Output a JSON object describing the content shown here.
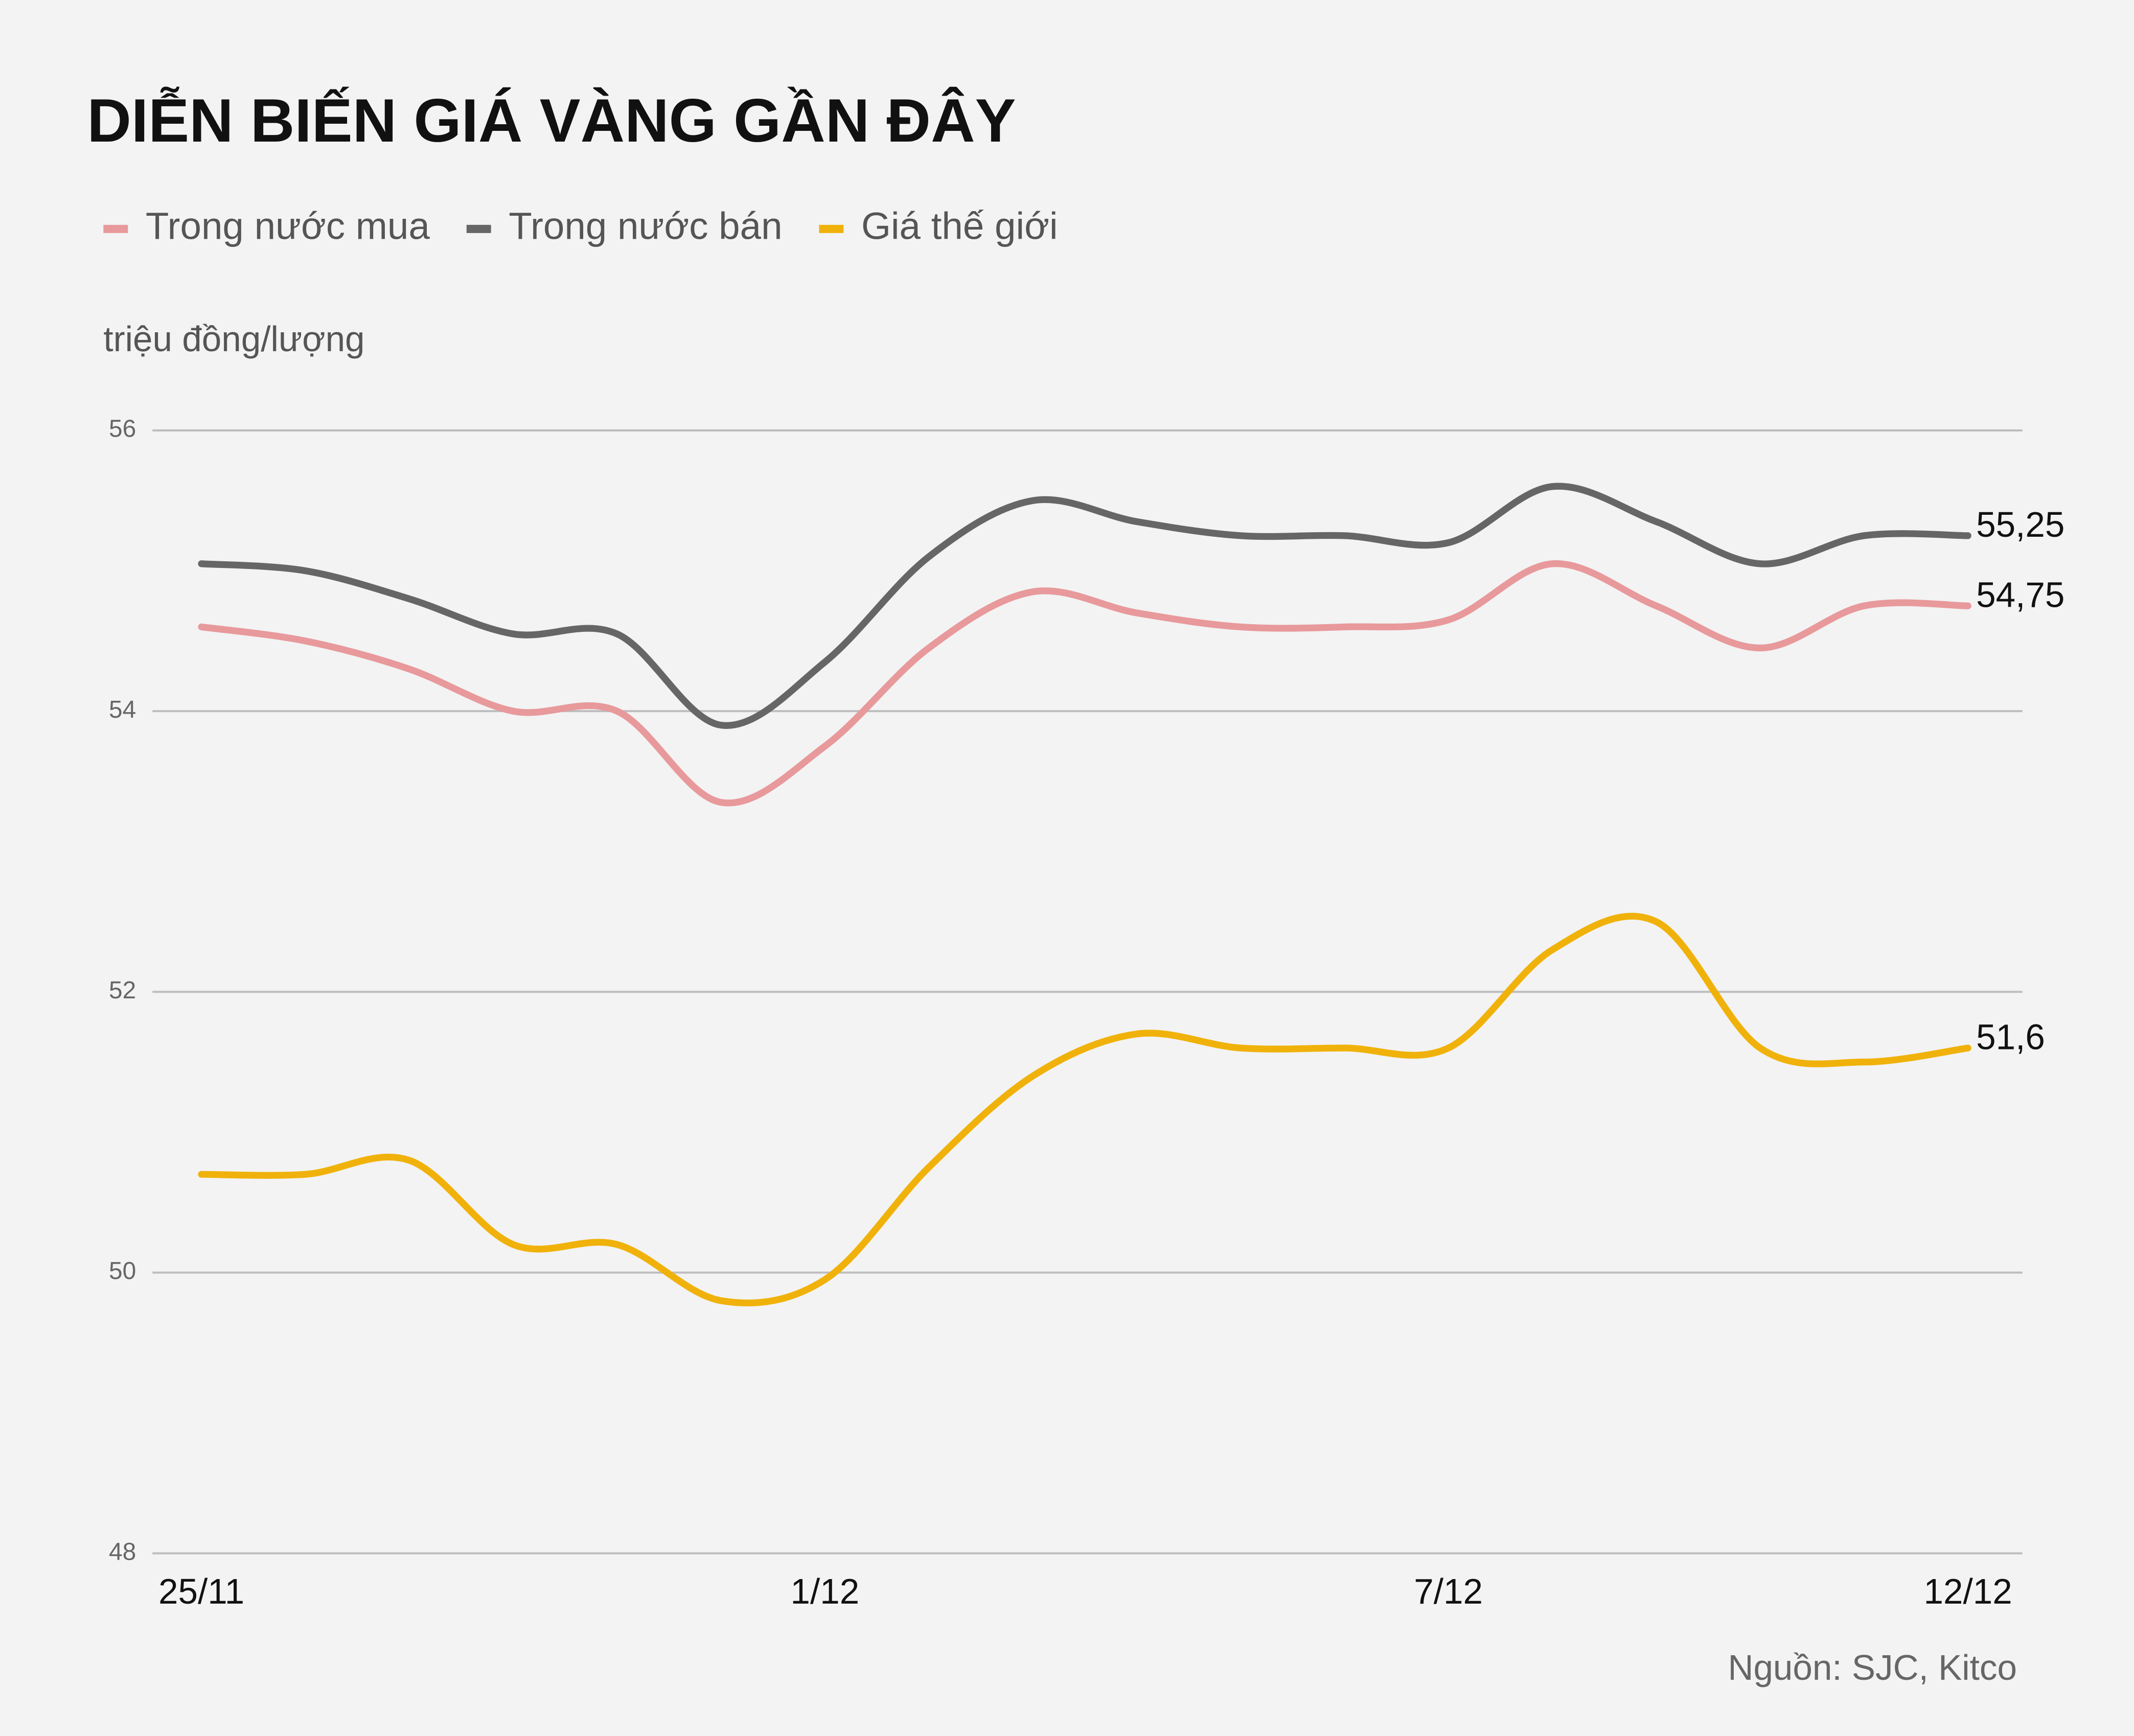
{
  "chart_data": {
    "type": "line",
    "title": "DIỄN BIẾN GIÁ VÀNG GẦN ĐÂY",
    "y_label": "triệu đồng/lượng",
    "source": "Nguồn: SJC, Kitco",
    "categories": [
      "25/11",
      null,
      null,
      null,
      null,
      null,
      "1/12",
      null,
      null,
      null,
      null,
      null,
      "7/12",
      null,
      null,
      null,
      null,
      "12/12"
    ],
    "series": [
      {
        "name": "Trong nước mua",
        "color": "#e8999b",
        "values": [
          54.6,
          54.5,
          54.3,
          54.0,
          54.0,
          53.35,
          53.75,
          54.45,
          54.85,
          54.7,
          54.6,
          54.6,
          54.65,
          55.05,
          54.75,
          54.45,
          54.75,
          54.75
        ],
        "value_labels": [
          null,
          null,
          null,
          null,
          null,
          null,
          null,
          null,
          null,
          null,
          null,
          null,
          null,
          null,
          null,
          null,
          null,
          "54,75"
        ]
      },
      {
        "name": "Trong nước bán",
        "color": "#666666",
        "values": [
          55.05,
          55.0,
          54.8,
          54.55,
          54.55,
          53.9,
          54.35,
          55.1,
          55.5,
          55.35,
          55.25,
          55.25,
          55.2,
          55.6,
          55.35,
          55.05,
          55.25,
          55.25
        ],
        "value_labels": [
          null,
          null,
          null,
          null,
          null,
          null,
          null,
          null,
          null,
          null,
          null,
          null,
          null,
          null,
          null,
          null,
          null,
          "55,25"
        ]
      },
      {
        "name": "Giá thế giới",
        "color": "#f0b20a",
        "values": [
          50.7,
          50.7,
          50.8,
          50.2,
          50.2,
          49.8,
          49.95,
          50.75,
          51.4,
          51.7,
          51.6,
          51.6,
          51.6,
          52.3,
          52.5,
          51.6,
          51.5,
          51.6
        ],
        "value_labels": [
          null,
          null,
          null,
          null,
          null,
          null,
          null,
          null,
          null,
          null,
          null,
          null,
          null,
          null,
          null,
          null,
          null,
          "51,6"
        ]
      }
    ],
    "ylim": [
      48,
      56
    ],
    "yticks": [
      48,
      50,
      52,
      54,
      56
    ],
    "grid": true
  }
}
